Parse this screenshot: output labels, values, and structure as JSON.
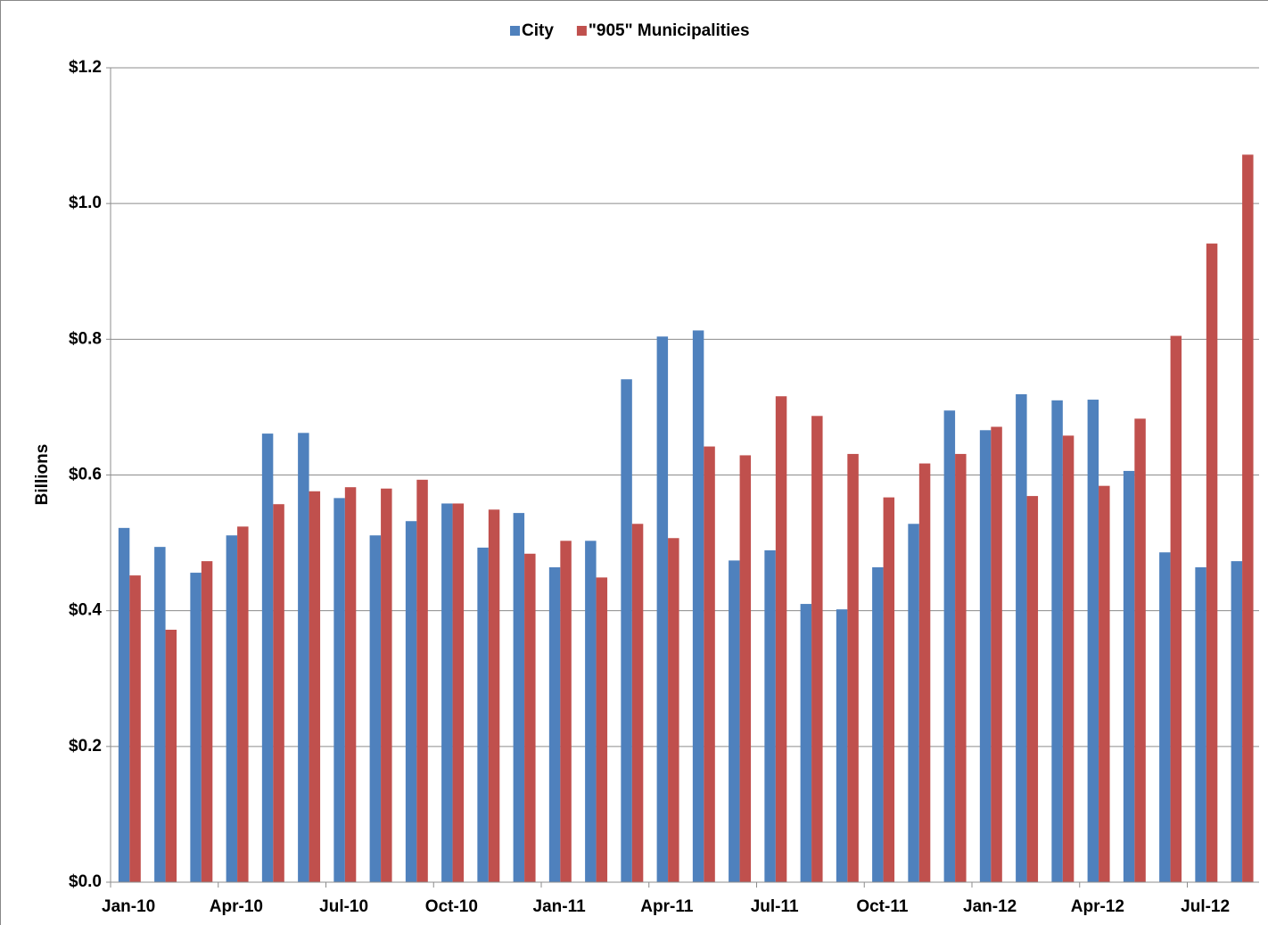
{
  "chart_data": {
    "type": "bar",
    "y_label": "Billions",
    "categories": [
      "Jan-10",
      null,
      null,
      "Apr-10",
      null,
      null,
      "Jul-10",
      null,
      null,
      "Oct-10",
      null,
      null,
      "Jan-11",
      null,
      null,
      "Apr-11",
      null,
      null,
      "Jul-11",
      null,
      null,
      "Oct-11",
      null,
      null,
      "Jan-12",
      null,
      null,
      "Apr-12",
      null,
      null,
      "Jul-12",
      null
    ],
    "series": [
      {
        "name": "City",
        "color": "#4f81bd",
        "values": [
          0.522,
          0.494,
          0.456,
          0.511,
          0.661,
          0.662,
          0.566,
          0.511,
          0.532,
          0.558,
          0.493,
          0.544,
          0.464,
          0.503,
          0.741,
          0.804,
          0.813,
          0.474,
          0.489,
          0.41,
          0.402,
          0.464,
          0.528,
          0.695,
          0.666,
          0.719,
          0.71,
          0.711,
          0.606,
          0.486,
          0.464,
          0.473
        ]
      },
      {
        "name": "\"905\" Municipalities",
        "color": "#c0504d",
        "values": [
          0.452,
          0.372,
          0.473,
          0.524,
          0.557,
          0.576,
          0.582,
          0.58,
          0.593,
          0.558,
          0.549,
          0.484,
          0.503,
          0.449,
          0.528,
          0.507,
          0.642,
          0.629,
          0.716,
          0.687,
          0.631,
          0.567,
          0.617,
          0.631,
          0.671,
          0.569,
          0.658,
          0.584,
          0.683,
          0.805,
          0.941,
          1.072
        ]
      }
    ],
    "ylim": [
      0,
      1.2
    ],
    "yticks": [
      {
        "value": 0,
        "label": "$0.0"
      },
      {
        "value": 0.2,
        "label": "$0.2"
      },
      {
        "value": 0.4,
        "label": "$0.4"
      },
      {
        "value": 0.6,
        "label": "$0.6"
      },
      {
        "value": 0.8,
        "label": "$0.8"
      },
      {
        "value": 1.0,
        "label": "$1.0"
      },
      {
        "value": 1.2,
        "label": "$1.2"
      }
    ],
    "grid": true,
    "legend": "top"
  }
}
